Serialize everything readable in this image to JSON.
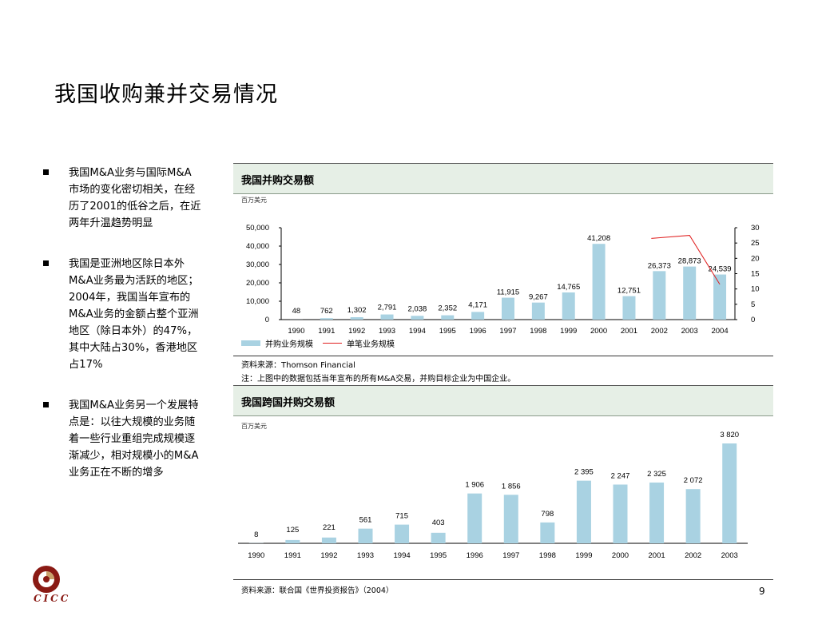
{
  "title": "我国收购兼并交易情况",
  "bullets": [
    "我国M&A业务与国际M&A市场的变化密切相关，在经历了2001的低谷之后，在近两年升温趋势明显",
    "我国是亚洲地区除日本外M&A业务最为活跃的地区；2004年，我国当年宣布的M&A业务的金额占整个亚洲地区（除日本外）的47%，其中大陆占30%，香港地区占17%",
    "我国M&A业务另一个发展特点是：以往大规模的业务随着一些行业重组完成规模逐渐减少，相对规模小的M&A业务正在不断的增多"
  ],
  "chart1_header": "我国并购交易额",
  "chart1_unit": "百万美元",
  "chart1_legend_bar": "并购业务规模",
  "chart1_legend_line": "单笔业务规模",
  "chart1_source": "资料来源：Thomson Financial",
  "chart1_note": "注：上图中的数据包括当年宣布的所有M&A交易，并购目标企业为中国企业。",
  "chart2_header": "我国跨国并购交易额",
  "chart2_unit": "百万美元",
  "chart2_source": "资料来源：联合国《世界投资报告》（2004）",
  "page_number": "9",
  "logo_text": "CICC",
  "colors": {
    "bar": "#a9d2e2",
    "line": "#e02020",
    "header_bg": "#e6efe6",
    "logo": "#8a1a14"
  },
  "chart_data": [
    {
      "type": "bar",
      "categories": [
        "1990",
        "1991",
        "1992",
        "1993",
        "1994",
        "1995",
        "1996",
        "1997",
        "1998",
        "1999",
        "2000",
        "2001",
        "2002",
        "2003",
        "2004"
      ],
      "series": [
        {
          "name": "并购业务规模",
          "values": [
            48,
            762,
            1302,
            2791,
            2038,
            2352,
            4171,
            11915,
            9267,
            14765,
            41208,
            12751,
            26373,
            28873,
            24539
          ],
          "labels": [
            "48",
            "762",
            "1,302",
            "2,791",
            "2,038",
            "2,352",
            "4,171",
            "11,915",
            "9,267",
            "14,765",
            "41,208",
            "12,751",
            "26,373",
            "28,873",
            "24,539"
          ]
        },
        {
          "name": "单笔业务规模",
          "axis": "right",
          "x": [
            "2002",
            "2003",
            "2004"
          ],
          "values": [
            26.5,
            27.5,
            11.5
          ]
        }
      ],
      "ylim": [
        0,
        50000
      ],
      "yticks": [
        "0",
        "10,000",
        "20,000",
        "30,000",
        "40,000",
        "50,000"
      ],
      "y2lim": [
        0,
        30
      ],
      "y2ticks": [
        "0",
        "5",
        "10",
        "15",
        "20",
        "25",
        "30"
      ],
      "legend": "bottom-left"
    },
    {
      "type": "bar",
      "categories": [
        "1990",
        "1991",
        "1992",
        "1993",
        "1994",
        "1995",
        "1996",
        "1997",
        "1998",
        "1999",
        "2000",
        "2001",
        "2002",
        "2003"
      ],
      "values": [
        8,
        125,
        221,
        561,
        715,
        403,
        1906,
        1856,
        798,
        2395,
        2247,
        2325,
        2072,
        3820
      ],
      "labels": [
        "8",
        "125",
        "221",
        "561",
        "715",
        "403",
        "1 906",
        "1 856",
        "798",
        "2 395",
        "2 247",
        "2 325",
        "2 072",
        "3 820"
      ],
      "ylim": [
        0,
        3820
      ]
    }
  ]
}
